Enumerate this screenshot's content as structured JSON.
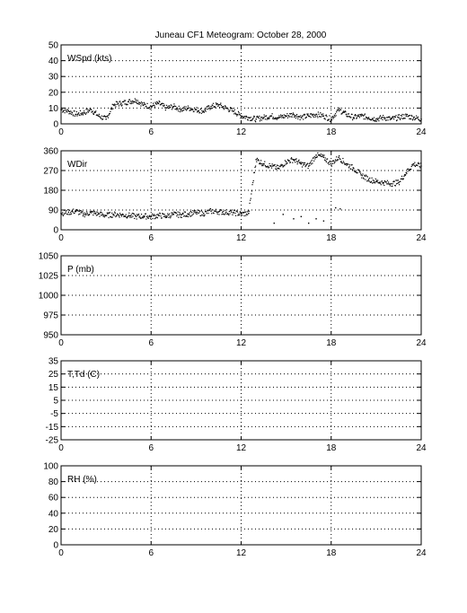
{
  "chart_data": {
    "type": "scatter",
    "title": "Juneau CF1 Meteogram:    October 28, 2000",
    "grid": true,
    "panels": [
      {
        "label": "WSpd (kts)",
        "xlim": [
          0,
          24
        ],
        "xticks": [
          "0",
          "6",
          "12",
          "18",
          "24"
        ],
        "ylim": [
          0,
          50
        ],
        "yticks": [
          "0",
          "10",
          "20",
          "30",
          "40",
          "50"
        ],
        "series": [
          {
            "x": [
              0,
              0.5,
              1,
              1.5,
              2,
              2.5,
              3,
              3.5,
              4,
              4.5,
              5,
              5.5,
              6,
              6.5,
              7,
              7.5,
              8,
              8.5,
              9,
              9.5,
              10,
              10.5,
              11,
              11.5,
              12,
              12.5,
              13,
              13.5,
              14,
              14.5,
              15,
              15.5,
              16,
              16.5,
              17,
              17.5,
              18,
              18.5,
              19,
              19.5,
              20,
              20.5,
              21,
              21.5,
              22,
              22.5,
              23,
              23.5,
              24
            ],
            "y": [
              9,
              8,
              6,
              7,
              9,
              5,
              3,
              12,
              13,
              14,
              15,
              12,
              11,
              13,
              10,
              11,
              9,
              10,
              9,
              8,
              11,
              12,
              10,
              8,
              5,
              4,
              3,
              4,
              5,
              4,
              5,
              6,
              4,
              5,
              6,
              5,
              3,
              9,
              6,
              4,
              5,
              4,
              3,
              4,
              3,
              4,
              5,
              4,
              3
            ]
          }
        ]
      },
      {
        "label": "WDir",
        "xlim": [
          0,
          24
        ],
        "xticks": [
          "0",
          "6",
          "12",
          "18",
          "24"
        ],
        "ylim": [
          0,
          360
        ],
        "yticks": [
          "0",
          "90",
          "180",
          "270",
          "360"
        ],
        "series": [
          {
            "x": [
              0,
              0.5,
              1,
              1.5,
              2,
              2.5,
              3,
              3.5,
              4,
              4.5,
              5,
              5.5,
              6,
              6.5,
              7,
              7.5,
              8,
              8.5,
              9,
              9.5,
              10,
              10.5,
              11,
              11.5,
              12,
              12.5,
              13,
              13.5,
              14,
              14.5,
              15,
              15.5,
              16,
              16.5,
              17,
              17.5,
              18,
              18.5,
              19,
              19.5,
              20,
              20.5,
              21,
              21.5,
              22,
              22.5,
              23,
              23.5,
              24
            ],
            "y": [
              75,
              80,
              85,
              70,
              78,
              72,
              65,
              70,
              68,
              65,
              60,
              62,
              60,
              65,
              62,
              70,
              68,
              72,
              78,
              74,
              85,
              82,
              80,
              78,
              72,
              75,
              320,
              300,
              290,
              280,
              310,
              320,
              300,
              290,
              340,
              330,
              300,
              330,
              300,
              280,
              250,
              230,
              220,
              215,
              210,
              215,
              260,
              300,
              290
            ]
          },
          {
            "x": [
              14.2,
              14.8,
              15.5,
              16.0,
              16.5,
              17.0,
              17.5,
              18.0,
              18.3,
              18.6
            ],
            "y": [
              30,
              70,
              50,
              60,
              30,
              50,
              40,
              90,
              100,
              95
            ]
          }
        ]
      },
      {
        "label": "P (mb)",
        "xlim": [
          0,
          24
        ],
        "xticks": [
          "0",
          "6",
          "12",
          "18",
          "24"
        ],
        "ylim": [
          950,
          1050
        ],
        "yticks": [
          "950",
          "975",
          "1000",
          "1025",
          "1050"
        ],
        "series": []
      },
      {
        "label": "T,Td (C)",
        "xlim": [
          0,
          24
        ],
        "xticks": [
          "0",
          "6",
          "12",
          "18",
          "24"
        ],
        "ylim": [
          -25,
          35
        ],
        "yticks": [
          "-25",
          "-15",
          "-5",
          "5",
          "15",
          "25",
          "35"
        ],
        "series": []
      },
      {
        "label": "RH (%)",
        "xlim": [
          0,
          24
        ],
        "xticks": [
          "0",
          "6",
          "12",
          "18",
          "24"
        ],
        "ylim": [
          0,
          100
        ],
        "yticks": [
          "0",
          "20",
          "40",
          "60",
          "80",
          "100"
        ],
        "series": []
      }
    ]
  }
}
